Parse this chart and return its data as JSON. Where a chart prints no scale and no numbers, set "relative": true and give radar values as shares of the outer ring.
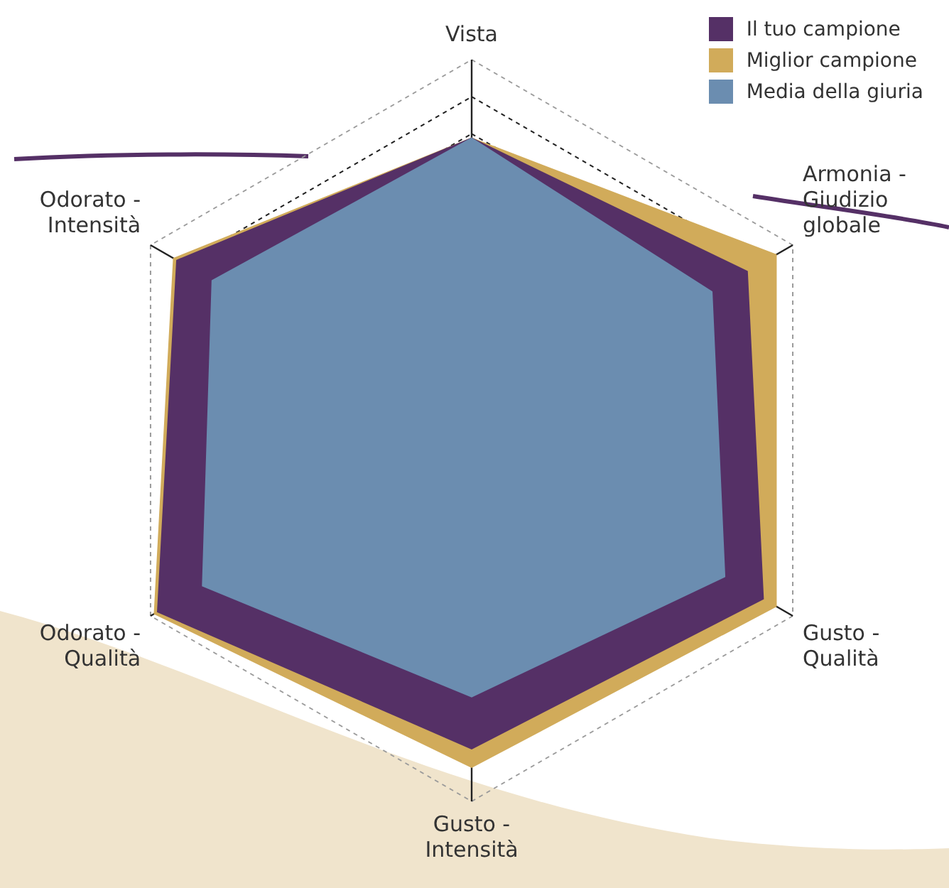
{
  "chart_data": {
    "type": "radar",
    "relative": true,
    "legend": "top right",
    "grid": true,
    "marker": "none",
    "categories": [
      "Vista",
      "Armonia - Giudizio globale",
      "Gusto - Qualità",
      "Gusto - Intensità",
      "Odorato - Qualità",
      "Odorato - Intensità"
    ],
    "series": [
      {
        "name": "Il tuo campione",
        "color": "#553066",
        "values": [
          0.79,
          0.86,
          0.91,
          0.86,
          0.98,
          0.92
        ]
      },
      {
        "name": "Miglior campione",
        "color": "#d1ab5a",
        "values": [
          0.79,
          0.95,
          0.95,
          0.91,
          0.99,
          0.93
        ]
      },
      {
        "name": "Media della giuria",
        "color": "#6b8db0",
        "values": [
          0.79,
          0.75,
          0.79,
          0.72,
          0.84,
          0.81
        ]
      }
    ]
  }
}
